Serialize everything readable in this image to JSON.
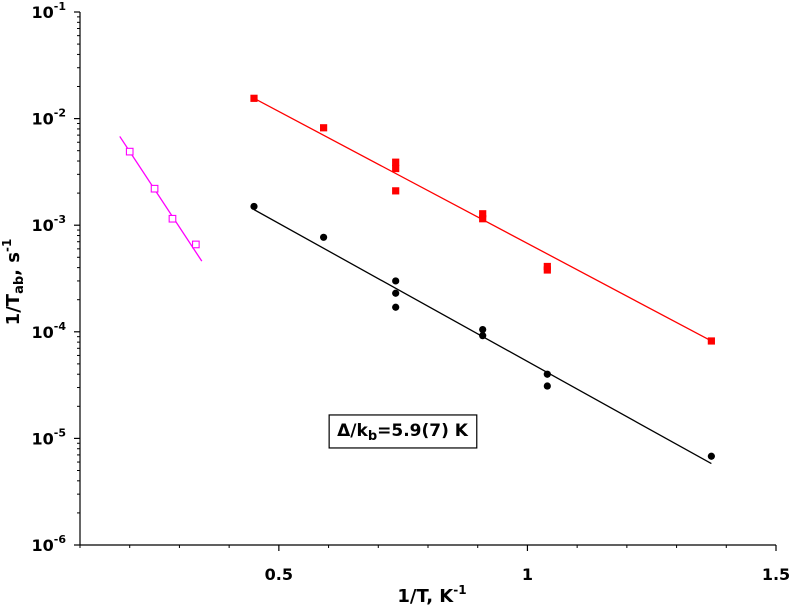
{
  "chart_data": {
    "type": "scatter",
    "title": "",
    "xlabel": {
      "main": "1/T, K",
      "sup": "-1"
    },
    "ylabel": {
      "pre": "1/T",
      "sub": "ab",
      "mid": ", s",
      "sup": "-1"
    },
    "xlim": [
      0.1,
      1.5
    ],
    "ylim": [
      1e-06,
      0.1
    ],
    "yscale": "log",
    "grid": false,
    "legend": "none",
    "x_ticks": [
      {
        "value": 0.5,
        "label": "0.5"
      },
      {
        "value": 1.0,
        "label": "1"
      },
      {
        "value": 1.5,
        "label": "1.5"
      }
    ],
    "y_ticks": [
      {
        "value": 1e-06,
        "base": "10",
        "exp": "-6"
      },
      {
        "value": 1e-05,
        "base": "10",
        "exp": "-5"
      },
      {
        "value": 0.0001,
        "base": "10",
        "exp": "-4"
      },
      {
        "value": 0.001,
        "base": "10",
        "exp": "-3"
      },
      {
        "value": 0.01,
        "base": "10",
        "exp": "-2"
      },
      {
        "value": 0.1,
        "base": "10",
        "exp": "-1"
      }
    ],
    "series": [
      {
        "color": "#ff00ff",
        "marker": "open-square",
        "points": [
          [
            0.2,
            0.0049
          ],
          [
            0.25,
            0.0022
          ],
          [
            0.286,
            0.00115
          ],
          [
            0.333,
            0.00066
          ]
        ],
        "fit": [
          [
            0.18,
            0.0068
          ],
          [
            0.345,
            0.00046
          ]
        ]
      },
      {
        "color": "#ff0000",
        "marker": "filled-square",
        "points": [
          [
            0.45,
            0.0155
          ],
          [
            0.59,
            0.0082
          ],
          [
            0.735,
            0.0039
          ],
          [
            0.735,
            0.0034
          ],
          [
            0.735,
            0.0021
          ],
          [
            0.91,
            0.00128
          ],
          [
            0.91,
            0.00115
          ],
          [
            1.04,
            0.00041
          ],
          [
            1.04,
            0.00038
          ],
          [
            1.37,
            8.2e-05
          ]
        ],
        "fit": [
          [
            0.45,
            0.0155
          ],
          [
            1.37,
            8.2e-05
          ]
        ]
      },
      {
        "color": "#000000",
        "marker": "filled-circle",
        "points": [
          [
            0.45,
            0.0015
          ],
          [
            0.59,
            0.00077
          ],
          [
            0.735,
            0.0003
          ],
          [
            0.735,
            0.00023
          ],
          [
            0.735,
            0.00017
          ],
          [
            0.91,
            0.000105
          ],
          [
            0.91,
            9.2e-05
          ],
          [
            1.04,
            4e-05
          ],
          [
            1.04,
            3.1e-05
          ],
          [
            1.37,
            6.8e-06
          ]
        ],
        "fit": [
          [
            0.45,
            0.0014
          ],
          [
            1.37,
            5.8e-06
          ]
        ]
      }
    ],
    "annotation": {
      "main": "Δ/k",
      "sub": "b",
      "rest": "=5.9(7) K",
      "x": 0.75,
      "y": 1.2e-05
    }
  }
}
